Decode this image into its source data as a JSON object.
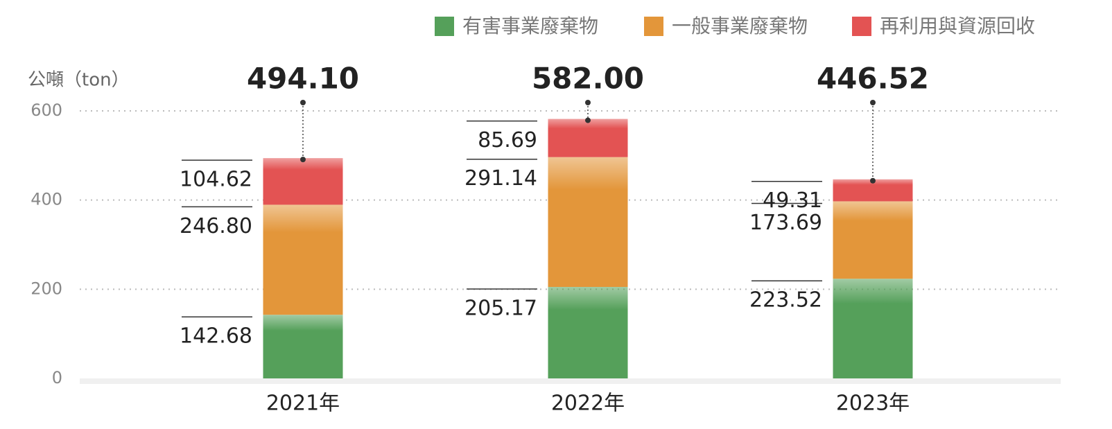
{
  "chart_data": {
    "type": "stacked_bar",
    "y_label": "公噸（ton）",
    "categories": [
      "2021年",
      "2022年",
      "2023年"
    ],
    "series": [
      {
        "name": "有害事業廢棄物",
        "color": "#55a05a",
        "values": [
          142.68,
          205.17,
          223.52
        ],
        "value_labels": [
          "142.68",
          "205.17",
          "223.52"
        ]
      },
      {
        "name": "一般事業廢棄物",
        "color": "#e3963a",
        "values": [
          246.8,
          291.14,
          173.69
        ],
        "value_labels": [
          "246.80",
          "291.14",
          "173.69"
        ]
      },
      {
        "name": "再利用與資源回收",
        "color": "#e35353",
        "values": [
          104.62,
          85.69,
          49.31
        ],
        "value_labels": [
          "104.62",
          "85.69",
          "49.31"
        ]
      }
    ],
    "totals": {
      "values": [
        494.1,
        582,
        446.52
      ],
      "value_labels": [
        "494.10",
        "582.00",
        "446.52"
      ]
    },
    "ylim": [
      0,
      600
    ],
    "yticks": [
      0,
      200,
      400,
      600
    ],
    "grid": true
  }
}
